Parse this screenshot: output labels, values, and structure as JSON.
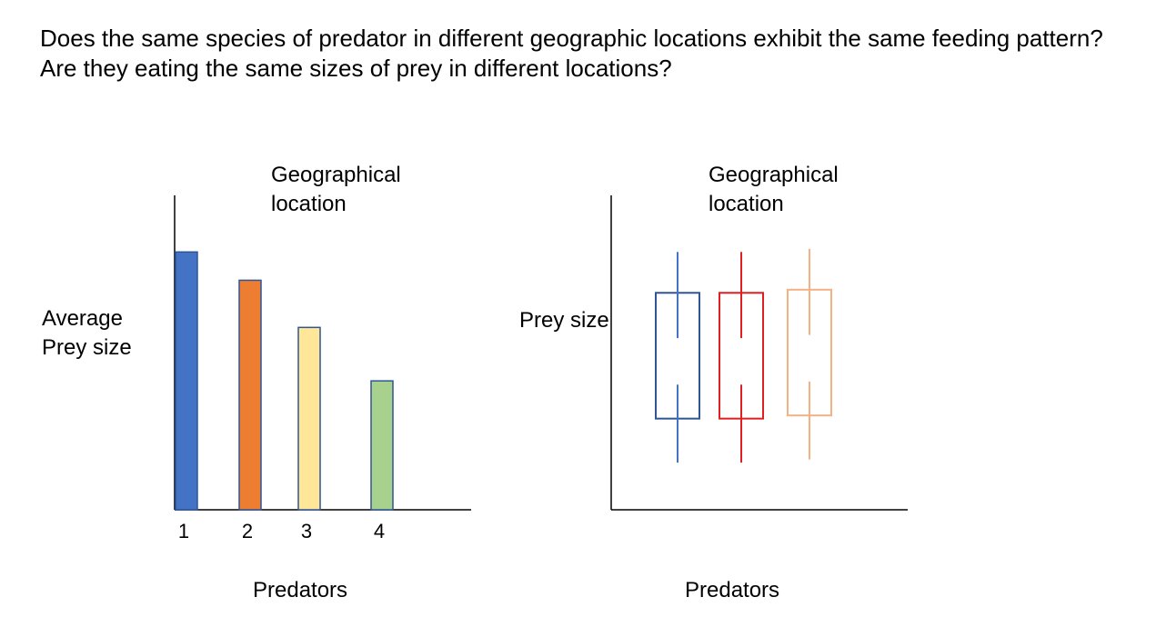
{
  "question": "Does the same species of predator in different geographic locations exhibit the same feeding pattern? Are they eating the same sizes of prey in different locations?",
  "left_panel": {
    "location_label_line1": "Geographical",
    "location_label_line2": "location",
    "ylabel_line1": "Average",
    "ylabel_line2": "Prey size",
    "xlabel": "Predators",
    "chart_data": {
      "type": "bar",
      "categories": [
        "1",
        "2",
        "3",
        "4"
      ],
      "values": [
        0.82,
        0.73,
        0.58,
        0.41
      ],
      "colors": [
        "#4472c4",
        "#ed7d31",
        "#ffe699",
        "#a9d18e"
      ],
      "ylim": [
        0,
        1
      ],
      "grid": false,
      "value_note": "relative heights (no numeric axis shown)"
    }
  },
  "right_panel": {
    "location_label_line1": "Geographical",
    "location_label_line2": "location",
    "ylabel": "Prey size",
    "xlabel": "Predators",
    "chart_data": {
      "type": "box",
      "ylim": [
        0,
        1
      ],
      "boxes": [
        {
          "color": "#2f5597",
          "whisker_color": "#4472c4",
          "low": 0.15,
          "q1": 0.29,
          "q3": 0.69,
          "high": 0.82
        },
        {
          "color": "#e02020",
          "whisker_color": "#e02020",
          "low": 0.15,
          "q1": 0.29,
          "q3": 0.69,
          "high": 0.82
        },
        {
          "color": "#f4b183",
          "whisker_color": "#f4b183",
          "low": 0.16,
          "q1": 0.3,
          "q3": 0.7,
          "high": 0.83
        }
      ]
    }
  }
}
